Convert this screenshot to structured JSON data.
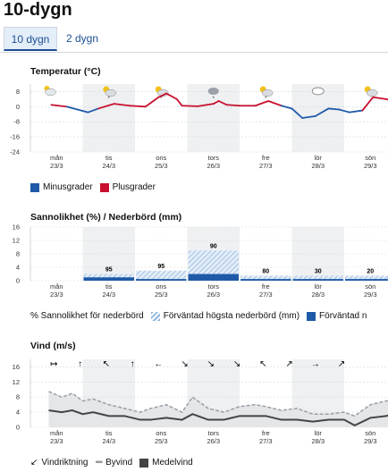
{
  "title": "10-dygn",
  "tabs": [
    {
      "label": "10 dygn",
      "active": true
    },
    {
      "label": "2 dygn",
      "active": false
    }
  ],
  "days": [
    {
      "name": "mån",
      "date": "23/3"
    },
    {
      "name": "tis",
      "date": "24/3"
    },
    {
      "name": "ons",
      "date": "25/3"
    },
    {
      "name": "tors",
      "date": "26/3"
    },
    {
      "name": "fre",
      "date": "27/3"
    },
    {
      "name": "lör",
      "date": "28/3"
    },
    {
      "name": "sön",
      "date": "29/3"
    }
  ],
  "temperature": {
    "title": "Temperatur (°C)",
    "yticks": [
      "8",
      "0",
      "-8",
      "-16",
      "-24"
    ],
    "icons": [
      "partly-cloudy-night-icon",
      "sun-snow-icon",
      "sun-snow-icon",
      "cloud-snow-icon",
      "sun-snow-icon",
      "cloud-icon",
      "sun-cloud-icon"
    ],
    "legend": {
      "minus": "Minusgrader",
      "plus": "Plusgrader"
    },
    "colors": {
      "minus": "#1f5aa8",
      "plus": "#c8102e"
    }
  },
  "precip": {
    "title": "Sannolikhet (%) / Nederbörd (mm)",
    "yticks": [
      "16",
      "12",
      "8",
      "4",
      "0"
    ],
    "probabilities": [
      "95",
      "95",
      "90",
      "80",
      "30",
      "20"
    ],
    "legend": {
      "prob": "% Sannolikhet för nederbörd",
      "max": "Förväntad högsta nederbörd (mm)",
      "exp": "Förväntad n"
    }
  },
  "wind": {
    "title": "Vind (m/s)",
    "yticks": [
      "16",
      "12",
      "8",
      "4",
      "0"
    ],
    "arrows": [
      "↦",
      "↑",
      "↖",
      "↑",
      "←",
      "↘",
      "↘",
      "↘",
      "↖",
      "↗",
      "→",
      "↗"
    ],
    "legend": {
      "dir": "Vindriktning",
      "gust": "Byvind",
      "mean": "Medelvind"
    }
  },
  "chart_data": [
    {
      "type": "line",
      "title": "Temperatur (°C)",
      "ylim": [
        -24,
        12
      ],
      "x": [
        "mån 23/3",
        "tis 24/3",
        "ons 25/3",
        "tors 26/3",
        "fre 27/3",
        "lör 28/3",
        "sön 29/3"
      ],
      "series": [
        {
          "name": "Plusgrader",
          "values": [
            1,
            1,
            7,
            1,
            2,
            -4,
            7
          ]
        },
        {
          "name": "Minusgrader",
          "values": [
            null,
            -2,
            null,
            null,
            null,
            -5,
            -2
          ]
        }
      ]
    },
    {
      "type": "bar",
      "title": "Sannolikhet (%) / Nederbörd (mm)",
      "ylim": [
        0,
        16
      ],
      "categories": [
        "tis 24/3",
        "ons 25/3",
        "tors 26/3",
        "fre 27/3",
        "lör 28/3",
        "sön 29/3"
      ],
      "series": [
        {
          "name": "% Sannolikhet för nederbörd",
          "values": [
            95,
            95,
            90,
            80,
            30,
            20
          ]
        },
        {
          "name": "Förväntad högsta nederbörd (mm)",
          "values": [
            2,
            3,
            9,
            1.5,
            1.5,
            1.5
          ]
        },
        {
          "name": "Förväntad n",
          "values": [
            1,
            0.5,
            2,
            0.5,
            0.5,
            0.5
          ]
        }
      ]
    },
    {
      "type": "area",
      "title": "Vind (m/s)",
      "ylim": [
        0,
        16
      ],
      "x": [
        "mån 23/3",
        "tis 24/3",
        "ons 25/3",
        "tors 26/3",
        "fre 27/3",
        "lör 28/3",
        "sön 29/3"
      ],
      "series": [
        {
          "name": "Byvind",
          "values": [
            9,
            7,
            4,
            8,
            6,
            3,
            6
          ]
        },
        {
          "name": "Medelvind",
          "values": [
            4,
            4,
            1,
            3,
            2,
            1,
            3
          ]
        }
      ]
    }
  ]
}
